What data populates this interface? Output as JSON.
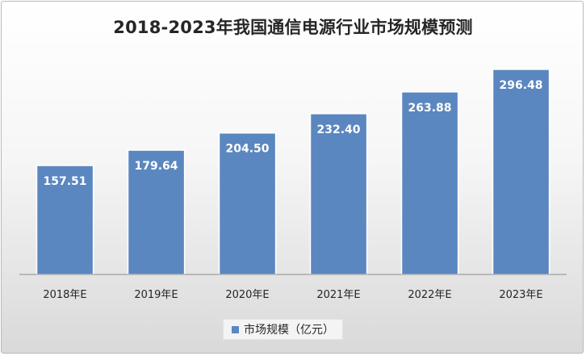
{
  "chart_data": {
    "type": "bar",
    "title": "2018-2023年我国通信电源行业市场规模预测",
    "categories": [
      "2018年E",
      "2019年E",
      "2020年E",
      "2021年E",
      "2022年E",
      "2023年E"
    ],
    "series": [
      {
        "name": "市场规模（亿元）",
        "values": [
          157.51,
          179.64,
          204.5,
          232.4,
          263.88,
          296.48
        ],
        "labels": [
          "157.51",
          "179.64",
          "204.50",
          "232.40",
          "263.88",
          "296.48"
        ]
      }
    ],
    "ylim": [
      0,
      350
    ],
    "grid": false,
    "legend": "bottom",
    "colors": {
      "bar": "#5b87c0",
      "bar_edge": "#ffffff",
      "axis": "#8c8c8c",
      "text": "#262626"
    }
  }
}
